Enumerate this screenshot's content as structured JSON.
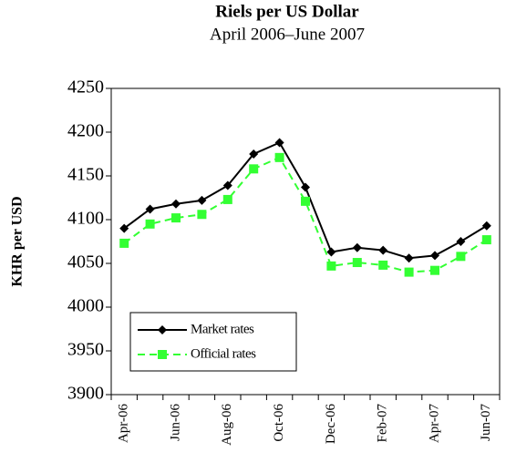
{
  "chart_data": {
    "type": "line",
    "title": "Riels per US Dollar",
    "subtitle": "April 2006–June 2007",
    "y_label": "KHR per USD",
    "categories": [
      "Apr-06",
      null,
      "Jun-06",
      null,
      "Aug-06",
      null,
      "Oct-06",
      null,
      "Dec-06",
      null,
      "Feb-07",
      null,
      "Apr-07",
      null,
      "Jun-07"
    ],
    "series": [
      {
        "name": "Market rates",
        "color": "#000000",
        "marker": "diamond",
        "dash": false,
        "values": [
          4090,
          4112,
          4118,
          4122,
          4139,
          4175,
          4188,
          4137,
          4063,
          4068,
          4065,
          4056,
          4059,
          4075,
          4093
        ]
      },
      {
        "name": "Official rates",
        "color": "#33ff33",
        "marker": "square",
        "dash": true,
        "values": [
          4073,
          4095,
          4102,
          4106,
          4123,
          4158,
          4171,
          4121,
          4047,
          4051,
          4048,
          4040,
          4042,
          4058,
          4077
        ]
      }
    ],
    "ylim": [
      3900,
      4250
    ],
    "yticks": [
      3900,
      3950,
      4000,
      4050,
      4100,
      4150,
      4200,
      4250
    ],
    "grid": false,
    "legend": "lower left"
  }
}
